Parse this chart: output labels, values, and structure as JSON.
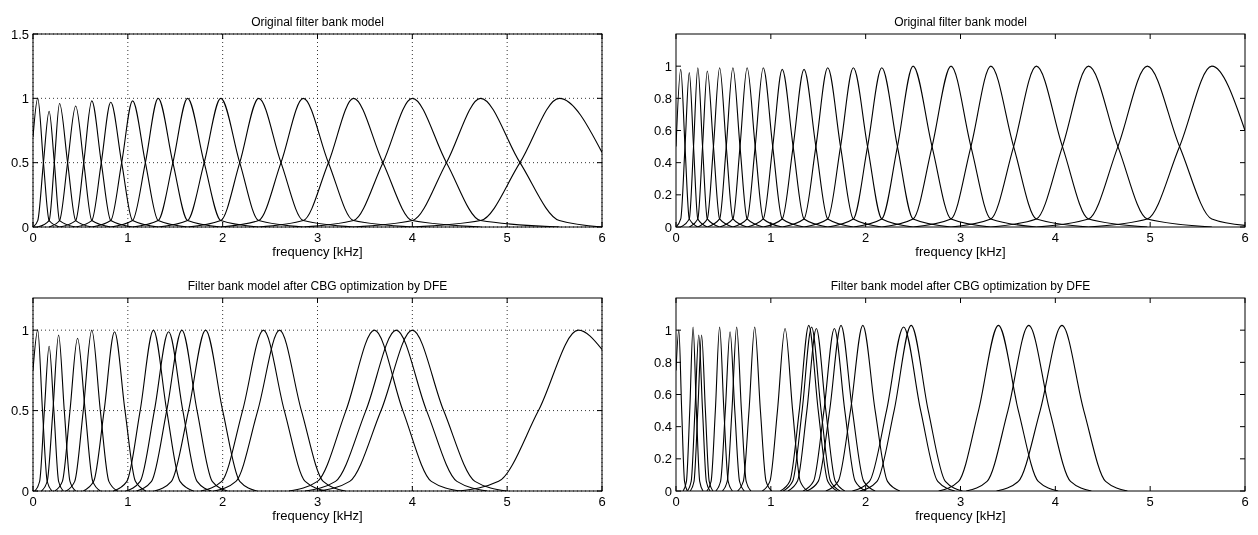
{
  "chart_data": [
    {
      "type": "line",
      "title": "Original filter bank model",
      "xlabel": "frequency [kHz]",
      "xlim": [
        0,
        6
      ],
      "xticks": [
        0,
        1,
        2,
        3,
        4,
        5,
        6
      ],
      "ylim": [
        0,
        1.5
      ],
      "yticks": [
        0,
        0.5,
        1,
        1.5
      ],
      "grid": true,
      "series": [
        {
          "color": "#000000",
          "x": [
            0,
            0.05,
            0.11,
            0.17,
            0.28
          ],
          "values": [
            0.7,
            1,
            0.5,
            0.05,
            0
          ]
        },
        {
          "color": "#000000",
          "x": [
            0,
            0.05,
            0.11,
            0.17,
            0.225,
            0.28,
            0.45
          ],
          "values": [
            0,
            0.05,
            0.5,
            0.9,
            0.5,
            0.05,
            0
          ]
        },
        {
          "color": "#000000",
          "x": [
            0.05,
            0.17,
            0.225,
            0.28,
            0.365,
            0.45,
            0.62
          ],
          "values": [
            0,
            0.05,
            0.5,
            0.96,
            0.5,
            0.05,
            0
          ]
        },
        {
          "color": "#000000",
          "x": [
            0.17,
            0.28,
            0.365,
            0.45,
            0.535,
            0.62,
            0.82
          ],
          "values": [
            0,
            0.05,
            0.5,
            0.94,
            0.5,
            0.05,
            0
          ]
        },
        {
          "color": "#000000",
          "x": [
            0.28,
            0.45,
            0.535,
            0.62,
            0.72,
            0.82,
            1.05
          ],
          "values": [
            0,
            0.05,
            0.5,
            0.98,
            0.5,
            0.05,
            0
          ]
        },
        {
          "color": "#000000",
          "x": [
            0.45,
            0.62,
            0.72,
            0.82,
            0.935,
            1.05,
            1.32
          ],
          "values": [
            0,
            0.05,
            0.5,
            0.97,
            0.5,
            0.05,
            0
          ]
        },
        {
          "color": "#000000",
          "x": [
            0.62,
            0.82,
            0.935,
            1.05,
            1.185,
            1.32,
            1.63
          ],
          "values": [
            0,
            0.05,
            0.5,
            0.98,
            0.5,
            0.05,
            0
          ]
        },
        {
          "color": "#000000",
          "x": [
            0.82,
            1.05,
            1.185,
            1.32,
            1.475,
            1.63,
            1.98
          ],
          "values": [
            0,
            0.05,
            0.5,
            1,
            0.5,
            0.05,
            0
          ]
        },
        {
          "color": "#000000",
          "x": [
            1.05,
            1.32,
            1.475,
            1.63,
            1.805,
            1.98,
            2.38
          ],
          "values": [
            0,
            0.05,
            0.5,
            1,
            0.5,
            0.05,
            0
          ]
        },
        {
          "color": "#000000",
          "x": [
            1.32,
            1.63,
            1.805,
            1.98,
            2.18,
            2.38,
            2.85
          ],
          "values": [
            0,
            0.05,
            0.5,
            1,
            0.5,
            0.05,
            0
          ]
        },
        {
          "color": "#000000",
          "x": [
            1.63,
            1.98,
            2.18,
            2.38,
            2.615,
            2.85,
            3.38
          ],
          "values": [
            0,
            0.05,
            0.5,
            1,
            0.5,
            0.05,
            0
          ]
        },
        {
          "color": "#000000",
          "x": [
            1.98,
            2.38,
            2.615,
            2.85,
            3.115,
            3.38,
            4.0
          ],
          "values": [
            0,
            0.05,
            0.5,
            1,
            0.5,
            0.05,
            0
          ]
        },
        {
          "color": "#000000",
          "x": [
            2.38,
            2.85,
            3.115,
            3.38,
            3.69,
            4.0,
            4.72
          ],
          "values": [
            0,
            0.05,
            0.5,
            1,
            0.5,
            0.05,
            0
          ]
        },
        {
          "color": "#000000",
          "x": [
            2.85,
            3.38,
            3.69,
            4.0,
            4.36,
            4.72,
            5.55
          ],
          "values": [
            0,
            0.05,
            0.5,
            1,
            0.5,
            0.05,
            0
          ]
        },
        {
          "color": "#000000",
          "x": [
            3.38,
            4.0,
            4.36,
            4.72,
            5.135,
            5.55,
            6
          ],
          "values": [
            0,
            0.05,
            0.5,
            1,
            0.5,
            0.05,
            0
          ]
        },
        {
          "color": "#000000",
          "x": [
            4.0,
            4.72,
            5.135,
            5.55,
            6
          ],
          "values": [
            0,
            0.05,
            0.5,
            1,
            0.58
          ]
        }
      ]
    },
    {
      "type": "line",
      "title": "Original filter bank model",
      "xlabel": "frequency [kHz]",
      "xlim": [
        0,
        6
      ],
      "xticks": [
        0,
        1,
        2,
        3,
        4,
        5,
        6
      ],
      "ylim": [
        0,
        1.2
      ],
      "yticks": [
        0,
        0.2,
        0.4,
        0.6,
        0.8,
        1
      ],
      "grid": false,
      "series": [
        {
          "color": "#000000",
          "x": [
            0,
            0.05,
            0.095,
            0.14,
            0.23
          ],
          "values": [
            0.5,
            0.98,
            0.5,
            0.05,
            0
          ]
        },
        {
          "color": "#000000",
          "x": [
            0,
            0.05,
            0.095,
            0.14,
            0.185,
            0.23,
            0.33
          ],
          "values": [
            0,
            0.05,
            0.5,
            0.96,
            0.5,
            0.05,
            0
          ]
        },
        {
          "color": "#000000",
          "x": [
            0.05,
            0.14,
            0.185,
            0.23,
            0.28,
            0.33,
            0.46
          ],
          "values": [
            0,
            0.05,
            0.5,
            0.99,
            0.5,
            0.05,
            0
          ]
        },
        {
          "color": "#000000",
          "x": [
            0.14,
            0.23,
            0.28,
            0.33,
            0.395,
            0.46,
            0.6
          ],
          "values": [
            0,
            0.05,
            0.5,
            0.97,
            0.5,
            0.05,
            0
          ]
        },
        {
          "color": "#000000",
          "x": [
            0.23,
            0.33,
            0.395,
            0.46,
            0.53,
            0.6,
            0.75
          ],
          "values": [
            0,
            0.05,
            0.5,
            0.99,
            0.5,
            0.05,
            0
          ]
        },
        {
          "color": "#000000",
          "x": [
            0.33,
            0.46,
            0.53,
            0.6,
            0.675,
            0.75,
            0.92
          ],
          "values": [
            0,
            0.05,
            0.5,
            0.99,
            0.5,
            0.05,
            0
          ]
        },
        {
          "color": "#000000",
          "x": [
            0.46,
            0.6,
            0.675,
            0.75,
            0.835,
            0.92,
            1.12
          ],
          "values": [
            0,
            0.05,
            0.5,
            0.99,
            0.5,
            0.05,
            0
          ]
        },
        {
          "color": "#000000",
          "x": [
            0.6,
            0.75,
            0.835,
            0.92,
            1.02,
            1.12,
            1.35
          ],
          "values": [
            0,
            0.05,
            0.5,
            0.99,
            0.5,
            0.05,
            0
          ]
        },
        {
          "color": "#000000",
          "x": [
            0.75,
            0.92,
            1.02,
            1.12,
            1.235,
            1.35,
            1.6
          ],
          "values": [
            0,
            0.05,
            0.5,
            0.98,
            0.5,
            0.05,
            0
          ]
        },
        {
          "color": "#000000",
          "x": [
            0.92,
            1.12,
            1.235,
            1.35,
            1.475,
            1.6,
            1.87
          ],
          "values": [
            0,
            0.05,
            0.5,
            0.98,
            0.5,
            0.05,
            0
          ]
        },
        {
          "color": "#000000",
          "x": [
            1.12,
            1.35,
            1.475,
            1.6,
            1.735,
            1.87,
            2.17
          ],
          "values": [
            0,
            0.05,
            0.5,
            0.99,
            0.5,
            0.05,
            0
          ]
        },
        {
          "color": "#000000",
          "x": [
            1.35,
            1.6,
            1.735,
            1.87,
            2.02,
            2.17,
            2.5
          ],
          "values": [
            0,
            0.05,
            0.5,
            0.99,
            0.5,
            0.05,
            0
          ]
        },
        {
          "color": "#000000",
          "x": [
            1.6,
            1.87,
            2.02,
            2.17,
            2.335,
            2.5,
            2.9
          ],
          "values": [
            0,
            0.05,
            0.5,
            0.99,
            0.5,
            0.05,
            0
          ]
        },
        {
          "color": "#000000",
          "x": [
            1.87,
            2.17,
            2.335,
            2.5,
            2.7,
            2.9,
            3.32
          ],
          "values": [
            0,
            0.05,
            0.5,
            1,
            0.5,
            0.05,
            0
          ]
        },
        {
          "color": "#000000",
          "x": [
            2.17,
            2.5,
            2.7,
            2.9,
            3.11,
            3.32,
            3.8
          ],
          "values": [
            0,
            0.05,
            0.5,
            1,
            0.5,
            0.05,
            0
          ]
        },
        {
          "color": "#000000",
          "x": [
            2.5,
            2.9,
            3.11,
            3.32,
            3.56,
            3.8,
            4.35
          ],
          "values": [
            0,
            0.05,
            0.5,
            1,
            0.5,
            0.05,
            0
          ]
        },
        {
          "color": "#000000",
          "x": [
            2.9,
            3.32,
            3.56,
            3.8,
            4.075,
            4.35,
            4.97
          ],
          "values": [
            0,
            0.05,
            0.5,
            1,
            0.5,
            0.05,
            0
          ]
        },
        {
          "color": "#000000",
          "x": [
            3.32,
            3.8,
            4.075,
            4.35,
            4.66,
            4.97,
            5.65
          ],
          "values": [
            0,
            0.05,
            0.5,
            1,
            0.5,
            0.05,
            0
          ]
        },
        {
          "color": "#000000",
          "x": [
            3.8,
            4.35,
            4.66,
            4.97,
            5.31,
            5.65,
            6
          ],
          "values": [
            0,
            0.05,
            0.5,
            1,
            0.5,
            0.05,
            0.01
          ]
        },
        {
          "color": "#000000",
          "x": [
            4.35,
            4.97,
            5.31,
            5.65,
            6
          ],
          "values": [
            0,
            0.05,
            0.5,
            1,
            0.6
          ]
        }
      ]
    },
    {
      "type": "line",
      "title": "Filter bank model after CBG optimization by DFE",
      "xlabel": "frequency [kHz]",
      "xlim": [
        0,
        6
      ],
      "xticks": [
        0,
        1,
        2,
        3,
        4,
        5,
        6
      ],
      "ylim": [
        0,
        1.2
      ],
      "yticks": [
        0,
        0.5,
        1
      ],
      "grid": true,
      "series": [
        {
          "color": "#000000",
          "x": [
            0,
            0.05,
            0.1,
            0.15,
            0.2
          ],
          "values": [
            0.75,
            1,
            0.5,
            0.06,
            0
          ]
        },
        {
          "color": "#000000",
          "x": [
            0.02,
            0.07,
            0.12,
            0.17,
            0.22,
            0.27,
            0.32
          ],
          "values": [
            0,
            0.06,
            0.5,
            0.9,
            0.5,
            0.06,
            0
          ]
        },
        {
          "color": "#000000",
          "x": [
            0.09,
            0.15,
            0.21,
            0.27,
            0.33,
            0.39,
            0.45
          ],
          "values": [
            0,
            0.06,
            0.5,
            0.97,
            0.5,
            0.06,
            0
          ]
        },
        {
          "color": "#000000",
          "x": [
            0.23,
            0.31,
            0.39,
            0.47,
            0.55,
            0.63,
            0.71
          ],
          "values": [
            0,
            0.06,
            0.5,
            0.95,
            0.5,
            0.06,
            0
          ]
        },
        {
          "color": "#000000",
          "x": [
            0.35,
            0.44,
            0.53,
            0.62,
            0.71,
            0.8,
            0.89
          ],
          "values": [
            0,
            0.06,
            0.5,
            1,
            0.5,
            0.06,
            0
          ]
        },
        {
          "color": "#000000",
          "x": [
            0.53,
            0.64,
            0.75,
            0.86,
            0.97,
            1.08,
            1.19
          ],
          "values": [
            0,
            0.06,
            0.5,
            0.99,
            0.5,
            0.06,
            0
          ]
        },
        {
          "color": "#000000",
          "x": [
            0.85,
            0.99,
            1.13,
            1.27,
            1.41,
            1.55,
            1.69
          ],
          "values": [
            0,
            0.06,
            0.5,
            1,
            0.5,
            0.06,
            0
          ]
        },
        {
          "color": "#000000",
          "x": [
            0.98,
            1.13,
            1.28,
            1.43,
            1.58,
            1.73,
            1.88
          ],
          "values": [
            0,
            0.06,
            0.5,
            0.99,
            0.5,
            0.06,
            0
          ]
        },
        {
          "color": "#000000",
          "x": [
            1.09,
            1.25,
            1.41,
            1.57,
            1.73,
            1.89,
            2.05
          ],
          "values": [
            0,
            0.06,
            0.5,
            1,
            0.5,
            0.06,
            0
          ]
        },
        {
          "color": "#000000",
          "x": [
            1.28,
            1.46,
            1.64,
            1.82,
            2.0,
            2.18,
            2.36
          ],
          "values": [
            0,
            0.06,
            0.5,
            1,
            0.5,
            0.06,
            0
          ]
        },
        {
          "color": "#000000",
          "x": [
            1.77,
            1.99,
            2.21,
            2.43,
            2.65,
            2.87,
            3.09
          ],
          "values": [
            0,
            0.06,
            0.5,
            1,
            0.5,
            0.06,
            0
          ]
        },
        {
          "color": "#000000",
          "x": [
            1.91,
            2.14,
            2.37,
            2.6,
            2.83,
            3.06,
            3.29
          ],
          "values": [
            0,
            0.06,
            0.5,
            1,
            0.5,
            0.06,
            0
          ]
        },
        {
          "color": "#000000",
          "x": [
            2.7,
            3.0,
            3.3,
            3.6,
            3.9,
            4.2,
            4.5
          ],
          "values": [
            0,
            0.06,
            0.5,
            1,
            0.5,
            0.06,
            0
          ]
        },
        {
          "color": "#000000",
          "x": [
            2.87,
            3.19,
            3.51,
            3.83,
            4.15,
            4.47,
            4.79
          ],
          "values": [
            0,
            0.06,
            0.5,
            1,
            0.5,
            0.06,
            0
          ]
        },
        {
          "color": "#000000",
          "x": [
            3.01,
            3.34,
            3.67,
            4.0,
            4.33,
            4.66,
            4.99
          ],
          "values": [
            0,
            0.06,
            0.5,
            1,
            0.5,
            0.06,
            0
          ]
        },
        {
          "color": "#000000",
          "x": [
            4.49,
            4.91,
            5.33,
            5.75,
            6
          ],
          "values": [
            0,
            0.06,
            0.5,
            1,
            0.88
          ]
        }
      ]
    },
    {
      "type": "line",
      "title": "Filter bank model after CBG optimization by DFE",
      "xlabel": "frequency [kHz]",
      "xlim": [
        0,
        6
      ],
      "xticks": [
        0,
        1,
        2,
        3,
        4,
        5,
        6
      ],
      "ylim": [
        0,
        1.2
      ],
      "yticks": [
        0,
        0.2,
        0.4,
        0.6,
        0.8,
        1
      ],
      "grid": false,
      "series": [
        {
          "color": "#000000",
          "x": [
            0,
            0.03,
            0.06,
            0.09,
            0.12
          ],
          "values": [
            0.75,
            1,
            0.5,
            0.06,
            0
          ]
        },
        {
          "color": "#000000",
          "x": [
            0.075,
            0.11,
            0.145,
            0.18,
            0.215,
            0.25,
            0.285
          ],
          "values": [
            0,
            0.06,
            0.5,
            1.02,
            0.5,
            0.06,
            0
          ]
        },
        {
          "color": "#000000",
          "x": [
            0.12,
            0.16,
            0.2,
            0.24,
            0.28,
            0.32,
            0.36
          ],
          "values": [
            0,
            0.06,
            0.5,
            0.97,
            0.5,
            0.06,
            0
          ]
        },
        {
          "color": "#000000",
          "x": [
            0.15,
            0.19,
            0.23,
            0.27,
            0.31,
            0.35,
            0.39
          ],
          "values": [
            0,
            0.06,
            0.5,
            0.97,
            0.5,
            0.06,
            0
          ]
        },
        {
          "color": "#000000",
          "x": [
            0.325,
            0.37,
            0.415,
            0.46,
            0.505,
            0.55,
            0.595
          ],
          "values": [
            0,
            0.06,
            0.5,
            1.02,
            0.5,
            0.06,
            0
          ]
        },
        {
          "color": "#000000",
          "x": [
            0.42,
            0.47,
            0.52,
            0.57,
            0.62,
            0.67,
            0.72
          ],
          "values": [
            0,
            0.06,
            0.5,
            0.99,
            0.5,
            0.06,
            0
          ]
        },
        {
          "color": "#000000",
          "x": [
            0.49,
            0.54,
            0.59,
            0.64,
            0.69,
            0.74,
            0.79
          ],
          "values": [
            0,
            0.06,
            0.5,
            1.02,
            0.5,
            0.06,
            0
          ]
        },
        {
          "color": "#000000",
          "x": [
            0.65,
            0.71,
            0.77,
            0.83,
            0.89,
            0.95,
            1.01
          ],
          "values": [
            0,
            0.06,
            0.5,
            1.02,
            0.5,
            0.06,
            0
          ]
        },
        {
          "color": "#000000",
          "x": [
            0.91,
            0.99,
            1.07,
            1.15,
            1.23,
            1.31,
            1.39
          ],
          "values": [
            0,
            0.06,
            0.5,
            1.01,
            0.5,
            0.06,
            0
          ]
        },
        {
          "color": "#000000",
          "x": [
            1.1,
            1.2,
            1.3,
            1.4,
            1.5,
            1.6,
            1.7
          ],
          "values": [
            0,
            0.06,
            0.5,
            1.03,
            0.5,
            0.06,
            0
          ]
        },
        {
          "color": "#000000",
          "x": [
            1.13,
            1.23,
            1.33,
            1.43,
            1.53,
            1.63,
            1.73
          ],
          "values": [
            0,
            0.06,
            0.5,
            1.02,
            0.5,
            0.06,
            0
          ]
        },
        {
          "color": "#000000",
          "x": [
            1.18,
            1.28,
            1.38,
            1.48,
            1.58,
            1.68,
            1.78
          ],
          "values": [
            0,
            0.06,
            0.5,
            1.01,
            0.5,
            0.06,
            0
          ]
        },
        {
          "color": "#000000",
          "x": [
            1.34,
            1.45,
            1.56,
            1.67,
            1.78,
            1.89,
            2.0
          ],
          "values": [
            0,
            0.06,
            0.5,
            1.01,
            0.5,
            0.06,
            0
          ]
        },
        {
          "color": "#000000",
          "x": [
            1.38,
            1.5,
            1.62,
            1.74,
            1.86,
            1.98,
            2.1
          ],
          "values": [
            0,
            0.06,
            0.5,
            1.03,
            0.5,
            0.06,
            0
          ]
        },
        {
          "color": "#000000",
          "x": [
            1.58,
            1.71,
            1.84,
            1.97,
            2.1,
            2.23,
            2.36
          ],
          "values": [
            0,
            0.06,
            0.5,
            1.03,
            0.5,
            0.06,
            0
          ]
        },
        {
          "color": "#000000",
          "x": [
            1.86,
            2.04,
            2.22,
            2.4,
            2.58,
            2.76,
            2.94
          ],
          "values": [
            0,
            0.06,
            0.5,
            1.02,
            0.5,
            0.06,
            0
          ]
        },
        {
          "color": "#000000",
          "x": [
            1.94,
            2.12,
            2.3,
            2.48,
            2.66,
            2.84,
            3.02
          ],
          "values": [
            0,
            0.06,
            0.5,
            1.03,
            0.5,
            0.06,
            0
          ]
        },
        {
          "color": "#000000",
          "x": [
            2.77,
            2.98,
            3.19,
            3.4,
            3.61,
            3.82,
            4.03
          ],
          "values": [
            0,
            0.06,
            0.5,
            1.03,
            0.5,
            0.06,
            0
          ]
        },
        {
          "color": "#000000",
          "x": [
            3.06,
            3.28,
            3.5,
            3.72,
            3.94,
            4.16,
            4.38
          ],
          "values": [
            0,
            0.06,
            0.5,
            1.03,
            0.5,
            0.06,
            0
          ]
        },
        {
          "color": "#000000",
          "x": [
            3.38,
            3.61,
            3.84,
            4.07,
            4.3,
            4.53,
            4.76
          ],
          "values": [
            0,
            0.06,
            0.5,
            1.03,
            0.5,
            0.06,
            0
          ]
        }
      ]
    }
  ]
}
